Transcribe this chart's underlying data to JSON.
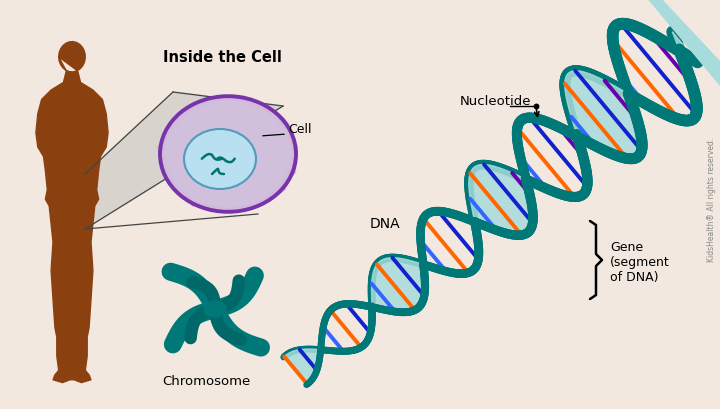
{
  "background_color": "#f2e8df",
  "title_text": "Inside the Cell",
  "label_cell": "Cell",
  "label_chromosome": "Chromosome",
  "label_dna": "DNA",
  "label_nucleotide": "Nucleotide",
  "label_gene": "Gene\n(segment\nof DNA)",
  "human_color": "#8B4010",
  "teal_dark": "#007878",
  "teal_mid": "#009090",
  "teal_light": "#70C8C8",
  "teal_fill": "#A8DCDC",
  "cell_outer_color": "#C8A0D0",
  "cell_body_color": "#D4B8DC",
  "cell_inner_color": "#C8D8E8",
  "cell_nucleus_color": "#B8E0F0",
  "cell_border_color": "#7733AA",
  "copyright_text": "KidsHealth® All rights reserved.",
  "strand_colors_inner": [
    "#FF6600",
    "#1122CC",
    "#6600AA",
    "#3366FF"
  ],
  "strand_colors_outer": [
    "#FF6600",
    "#1122CC",
    "#6600AA",
    "#3366FF"
  ]
}
